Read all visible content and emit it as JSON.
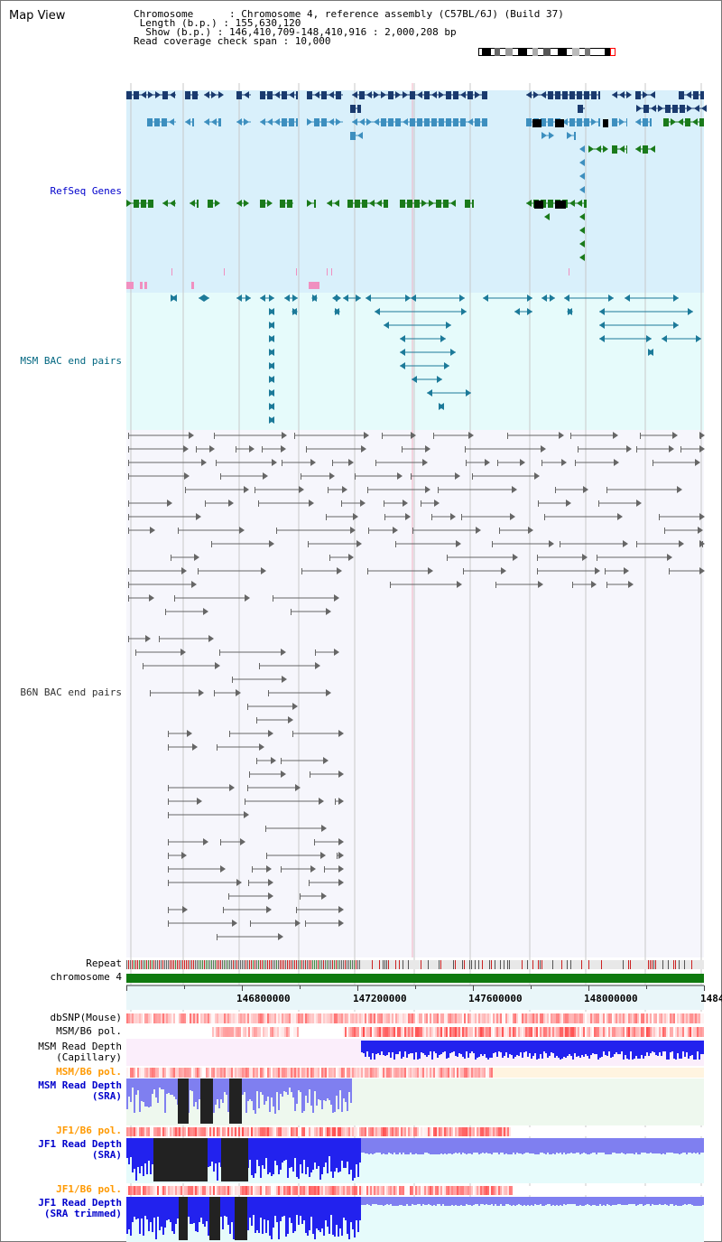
{
  "page": {
    "title": "Map View"
  },
  "info": {
    "chromosome_line": "Chromosome      : Chromosome 4, reference assembly (C57BL/6J) (Build 37)",
    "length_line": " Length (b.p.) : 155,630,120",
    "show_line": "  Show (b.p.) : 146,410,709-148,410,916 : 2,000,208 bp",
    "coverage_line": "Read coverage check span : 10,000"
  },
  "tracks": {
    "refseq": "RefSeq Genes",
    "msm_bac": "MSM BAC end pairs",
    "b6n_bac": "B6N BAC end pairs",
    "repeat": "Repeat",
    "chromosome": "chromosome 4",
    "dbsnp": "dbSNP(Mouse)",
    "msm_b6_pol_1": "MSM/B6 pol.",
    "msm_read_cap": "MSM Read Depth\n(Capillary)",
    "msm_b6_pol_2": "MSM/B6 pol.",
    "msm_read_sra": "MSM Read Depth\n(SRA)",
    "jf1_b6_pol_1": "JF1/B6 pol.",
    "jf1_read_sra": "JF1 Read Depth\n(SRA)",
    "jf1_b6_pol_2": "JF1/B6 pol.",
    "jf1_read_trim": "JF1 Read Depth\n(SRA trimmed)"
  },
  "scale": {
    "ticks": [
      "146800000",
      "147200000",
      "147600000",
      "148000000",
      "1484"
    ]
  },
  "colors": {
    "refseq_bg": "#d9f0fb",
    "msm_bac_bg": "#e6fbfb",
    "b6n_bg": "#f6f6fc",
    "gene_dark": "#1a3a6e",
    "gene_mid": "#3d8fbf",
    "gene_green": "#1a7a1a",
    "bac_teal": "#1c7a99",
    "bac_gray": "#666666",
    "chrom_green": "#0f7a0f",
    "depth_blue": "#2222ee",
    "depth_light": "#7f7ff0"
  }
}
